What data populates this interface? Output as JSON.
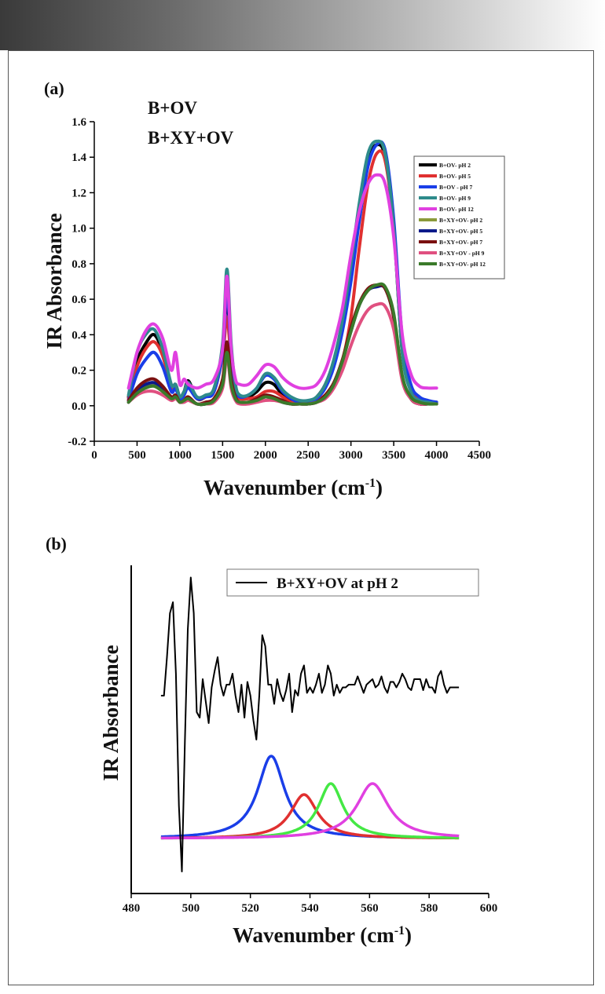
{
  "chart_data": [
    {
      "type": "line",
      "panel_label": "(a)",
      "annotations": [
        "B+OV",
        "B+XY+OV"
      ],
      "xlabel": "Wavenumber (cm",
      "xlabel_sup": "-1",
      "xlabel_close": ")",
      "ylabel": "IR Absorbance",
      "xlim": [
        0,
        4500
      ],
      "ylim": [
        -0.2,
        1.6
      ],
      "xticks": [
        "0",
        "500",
        "1000",
        "1500",
        "2000",
        "2500",
        "3000",
        "3500",
        "4000",
        "4500"
      ],
      "yticks": [
        "-0.2",
        "0.0",
        "0.2",
        "0.4",
        "0.6",
        "0.8",
        "1.0",
        "1.2",
        "1.4",
        "1.6"
      ],
      "legend_position": "top-right",
      "x": [
        400,
        500,
        600,
        700,
        800,
        900,
        950,
        1000,
        1050,
        1100,
        1200,
        1300,
        1400,
        1500,
        1550,
        1600,
        1650,
        1700,
        1800,
        1900,
        2000,
        2100,
        2200,
        2300,
        2400,
        2500,
        2600,
        2700,
        2800,
        2900,
        3000,
        3100,
        3200,
        3300,
        3400,
        3500,
        3600,
        3700,
        3800,
        3900,
        4000
      ],
      "series": [
        {
          "name": "B+OV- pH 2",
          "color": "#000000",
          "values": [
            0.05,
            0.25,
            0.35,
            0.4,
            0.3,
            0.1,
            0.12,
            0.05,
            0.08,
            0.14,
            0.04,
            0.05,
            0.09,
            0.3,
            0.6,
            0.3,
            0.1,
            0.05,
            0.05,
            0.08,
            0.13,
            0.12,
            0.06,
            0.03,
            0.02,
            0.02,
            0.05,
            0.12,
            0.25,
            0.45,
            0.75,
            1.1,
            1.38,
            1.47,
            1.4,
            1.0,
            0.3,
            0.1,
            0.04,
            0.02,
            0.02
          ]
        },
        {
          "name": "B+OV- pH 5",
          "color": "#e03030",
          "values": [
            0.04,
            0.22,
            0.32,
            0.36,
            0.28,
            0.1,
            0.1,
            0.04,
            0.07,
            0.12,
            0.04,
            0.05,
            0.08,
            0.28,
            0.5,
            0.25,
            0.08,
            0.04,
            0.04,
            0.05,
            0.08,
            0.08,
            0.05,
            0.02,
            0.02,
            0.02,
            0.03,
            0.06,
            0.12,
            0.25,
            0.5,
            0.9,
            1.25,
            1.42,
            1.38,
            1.0,
            0.35,
            0.1,
            0.03,
            0.02,
            0.01
          ]
        },
        {
          "name": "B+OV - pH  7",
          "color": "#1a3ee8",
          "values": [
            0.03,
            0.18,
            0.26,
            0.3,
            0.22,
            0.08,
            0.1,
            0.03,
            0.06,
            0.1,
            0.04,
            0.05,
            0.08,
            0.3,
            0.65,
            0.3,
            0.1,
            0.05,
            0.06,
            0.1,
            0.17,
            0.15,
            0.08,
            0.04,
            0.02,
            0.02,
            0.04,
            0.1,
            0.22,
            0.42,
            0.7,
            1.05,
            1.35,
            1.47,
            1.44,
            1.05,
            0.38,
            0.12,
            0.05,
            0.03,
            0.02
          ]
        },
        {
          "name": "B+OV- pH 9",
          "color": "#2e8b8b",
          "values": [
            0.06,
            0.3,
            0.4,
            0.43,
            0.32,
            0.12,
            0.12,
            0.05,
            0.08,
            0.13,
            0.05,
            0.06,
            0.1,
            0.35,
            0.77,
            0.35,
            0.12,
            0.06,
            0.06,
            0.1,
            0.18,
            0.16,
            0.09,
            0.05,
            0.03,
            0.03,
            0.05,
            0.12,
            0.26,
            0.48,
            0.8,
            1.15,
            1.42,
            1.49,
            1.42,
            1.0,
            0.3,
            0.08,
            0.03,
            0.02,
            0.01
          ]
        },
        {
          "name": "B+OV- pH 12",
          "color": "#e040e0",
          "values": [
            0.1,
            0.3,
            0.42,
            0.46,
            0.38,
            0.2,
            0.3,
            0.12,
            0.15,
            0.12,
            0.1,
            0.12,
            0.15,
            0.32,
            0.73,
            0.32,
            0.15,
            0.12,
            0.12,
            0.17,
            0.23,
            0.22,
            0.16,
            0.12,
            0.1,
            0.1,
            0.12,
            0.2,
            0.35,
            0.55,
            0.85,
            1.1,
            1.25,
            1.3,
            1.25,
            0.95,
            0.4,
            0.18,
            0.11,
            0.1,
            0.1
          ]
        },
        {
          "name": "B+XY+OV- pH 2",
          "color": "#8a9a3a",
          "values": [
            0.02,
            0.08,
            0.11,
            0.12,
            0.09,
            0.04,
            0.05,
            0.02,
            0.03,
            0.04,
            0.01,
            0.01,
            0.03,
            0.12,
            0.3,
            0.12,
            0.04,
            0.02,
            0.02,
            0.03,
            0.05,
            0.04,
            0.02,
            0.01,
            0.01,
            0.01,
            0.02,
            0.05,
            0.12,
            0.25,
            0.42,
            0.57,
            0.65,
            0.68,
            0.66,
            0.5,
            0.15,
            0.04,
            0.01,
            0.01,
            0.01
          ]
        },
        {
          "name": "B+XY+OV- pH 5",
          "color": "#0a1a8a",
          "values": [
            0.02,
            0.09,
            0.12,
            0.13,
            0.1,
            0.05,
            0.05,
            0.02,
            0.03,
            0.04,
            0.01,
            0.01,
            0.03,
            0.12,
            0.3,
            0.12,
            0.04,
            0.02,
            0.02,
            0.03,
            0.05,
            0.04,
            0.02,
            0.01,
            0.01,
            0.01,
            0.02,
            0.05,
            0.12,
            0.25,
            0.42,
            0.57,
            0.65,
            0.67,
            0.66,
            0.5,
            0.15,
            0.04,
            0.01,
            0.01,
            0.01
          ]
        },
        {
          "name": "B+XY+OV- pH 7",
          "color": "#7a1010",
          "values": [
            0.03,
            0.1,
            0.14,
            0.15,
            0.11,
            0.05,
            0.06,
            0.02,
            0.03,
            0.05,
            0.01,
            0.02,
            0.04,
            0.15,
            0.36,
            0.15,
            0.05,
            0.02,
            0.02,
            0.04,
            0.06,
            0.05,
            0.03,
            0.01,
            0.01,
            0.01,
            0.02,
            0.06,
            0.13,
            0.26,
            0.44,
            0.58,
            0.66,
            0.68,
            0.66,
            0.5,
            0.16,
            0.04,
            0.01,
            0.01,
            0.01
          ]
        },
        {
          "name": "B+XY+OV - pH 9",
          "color": "#e05080",
          "values": [
            0.02,
            0.06,
            0.08,
            0.08,
            0.06,
            0.03,
            0.04,
            0.02,
            0.02,
            0.03,
            0.01,
            0.01,
            0.02,
            0.1,
            0.28,
            0.1,
            0.03,
            0.01,
            0.01,
            0.02,
            0.03,
            0.03,
            0.02,
            0.01,
            0.01,
            0.01,
            0.02,
            0.04,
            0.1,
            0.2,
            0.34,
            0.46,
            0.54,
            0.57,
            0.56,
            0.43,
            0.14,
            0.04,
            0.01,
            0.01,
            0.01
          ]
        },
        {
          "name": "B+XY+OV- pH 12",
          "color": "#3a7a2a",
          "values": [
            0.02,
            0.07,
            0.1,
            0.11,
            0.08,
            0.04,
            0.05,
            0.02,
            0.03,
            0.04,
            0.01,
            0.01,
            0.03,
            0.12,
            0.3,
            0.12,
            0.04,
            0.02,
            0.02,
            0.03,
            0.05,
            0.04,
            0.02,
            0.01,
            0.01,
            0.01,
            0.02,
            0.05,
            0.12,
            0.25,
            0.42,
            0.57,
            0.65,
            0.68,
            0.67,
            0.52,
            0.17,
            0.05,
            0.02,
            0.01,
            0.01
          ]
        }
      ]
    },
    {
      "type": "line",
      "panel_label": "(b)",
      "xlabel": "Wavenumber (cm",
      "xlabel_sup": "-1",
      "xlabel_close": ")",
      "ylabel": "IR Absorbance",
      "xlim": [
        480,
        600
      ],
      "xticks": [
        "480",
        "500",
        "520",
        "540",
        "560",
        "580",
        "600"
      ],
      "legend_position": "top-right",
      "legend_entry": "B+XY+OV at pH 2",
      "spectrum": {
        "name": "B+XY+OV at pH 2",
        "color": "#000000",
        "x": [
          490,
          491,
          492,
          493,
          494,
          495,
          496,
          497,
          498,
          499,
          500,
          501,
          502,
          503,
          504,
          505,
          506,
          507,
          508,
          509,
          510,
          511,
          512,
          513,
          514,
          515,
          516,
          517,
          518,
          519,
          520,
          521,
          522,
          523,
          524,
          525,
          526,
          527,
          528,
          529,
          530,
          531,
          532,
          533,
          534,
          535,
          536,
          537,
          538,
          539,
          540,
          541,
          542,
          543,
          544,
          545,
          546,
          547,
          548,
          549,
          550,
          551,
          552,
          553,
          554,
          555,
          556,
          557,
          558,
          559,
          560,
          561,
          562,
          563,
          564,
          565,
          566,
          567,
          568,
          569,
          570,
          571,
          572,
          573,
          574,
          575,
          576,
          577,
          578,
          579,
          580,
          581,
          582,
          583,
          584,
          585,
          586,
          587,
          588,
          589,
          590
        ],
        "values": [
          0.52,
          0.52,
          0.66,
          0.82,
          0.86,
          0.6,
          0.12,
          -0.12,
          0.35,
          0.76,
          0.95,
          0.82,
          0.46,
          0.44,
          0.58,
          0.5,
          0.42,
          0.55,
          0.61,
          0.66,
          0.56,
          0.52,
          0.56,
          0.56,
          0.6,
          0.52,
          0.46,
          0.56,
          0.44,
          0.57,
          0.52,
          0.43,
          0.36,
          0.52,
          0.74,
          0.7,
          0.56,
          0.56,
          0.49,
          0.58,
          0.53,
          0.5,
          0.54,
          0.6,
          0.46,
          0.54,
          0.52,
          0.6,
          0.63,
          0.53,
          0.55,
          0.53,
          0.56,
          0.6,
          0.53,
          0.56,
          0.63,
          0.6,
          0.52,
          0.56,
          0.53,
          0.55,
          0.55,
          0.56,
          0.56,
          0.56,
          0.59,
          0.56,
          0.53,
          0.56,
          0.57,
          0.58,
          0.55,
          0.56,
          0.59,
          0.55,
          0.53,
          0.57,
          0.57,
          0.55,
          0.57,
          0.6,
          0.58,
          0.55,
          0.54,
          0.58,
          0.58,
          0.58,
          0.54,
          0.58,
          0.55,
          0.55,
          0.53,
          0.59,
          0.61,
          0.56,
          0.53,
          0.55,
          0.55,
          0.55,
          0.55
        ]
      },
      "fitted_peaks": [
        {
          "color": "#1a3ee8",
          "center": 527,
          "width": 5.5,
          "height": 0.3
        },
        {
          "color": "#e03030",
          "center": 538,
          "width": 5.5,
          "height": 0.16
        },
        {
          "color": "#44e844",
          "center": 547,
          "width": 5,
          "height": 0.2
        },
        {
          "color": "#e040e0",
          "center": 561,
          "width": 6.5,
          "height": 0.2
        }
      ]
    }
  ]
}
